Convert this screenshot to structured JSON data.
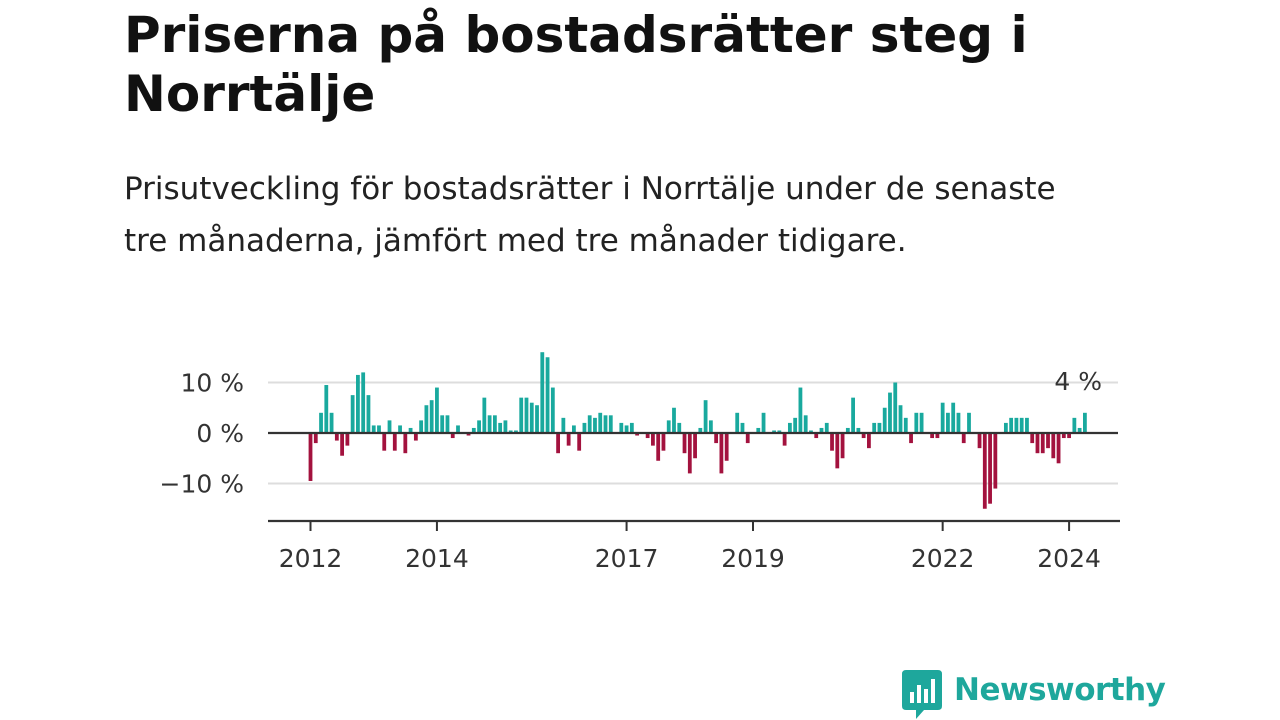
{
  "title": "Priserna på bostadsrätter steg i Norrtälje",
  "subtitle": "Prisutveckling för bostadsrätter i Norrtälje under de senaste tre månaderna, jämfört med tre månader tidigare.",
  "logo": {
    "name": "Newsworthy",
    "icon": "newsworthy-chart-bubble-icon",
    "color": "#1ea79c"
  },
  "colors": {
    "positive": "#19a99e",
    "negative": "#a3123e",
    "grid": "#dddddd",
    "zero_line": "#333333",
    "axis": "#333333"
  },
  "chart_data": {
    "type": "bar",
    "title": "",
    "xlabel": "",
    "ylabel": "",
    "ylim": [
      -17,
      17
    ],
    "y_ticks": [
      {
        "value": 10,
        "label": "10 %"
      },
      {
        "value": 0,
        "label": "0 %"
      },
      {
        "value": -10,
        "label": "−10 %"
      }
    ],
    "x_ticks": [
      {
        "date": "2012-01",
        "label": "2012"
      },
      {
        "date": "2014-01",
        "label": "2014"
      },
      {
        "date": "2017-01",
        "label": "2017"
      },
      {
        "date": "2019-01",
        "label": "2019"
      },
      {
        "date": "2022-01",
        "label": "2022"
      },
      {
        "date": "2024-01",
        "label": "2024"
      }
    ],
    "last_value_label": "4 %",
    "series": [
      {
        "points": [
          {
            "month": "2012-01",
            "value": -9.5
          },
          {
            "month": "2012-02",
            "value": -2
          },
          {
            "month": "2012-03",
            "value": 4
          },
          {
            "month": "2012-04",
            "value": 9.5
          },
          {
            "month": "2012-05",
            "value": 4
          },
          {
            "month": "2012-06",
            "value": -1.5
          },
          {
            "month": "2012-07",
            "value": -4.5
          },
          {
            "month": "2012-08",
            "value": -2.5
          },
          {
            "month": "2012-09",
            "value": 7.5
          },
          {
            "month": "2012-10",
            "value": 11.5
          },
          {
            "month": "2012-11",
            "value": 12
          },
          {
            "month": "2012-12",
            "value": 7.5
          },
          {
            "month": "2013-01",
            "value": 1.5
          },
          {
            "month": "2013-02",
            "value": 1.5
          },
          {
            "month": "2013-03",
            "value": -3.5
          },
          {
            "month": "2013-04",
            "value": 2.5
          },
          {
            "month": "2013-05",
            "value": -3.5
          },
          {
            "month": "2013-06",
            "value": 1.5
          },
          {
            "month": "2013-07",
            "value": -4
          },
          {
            "month": "2013-08",
            "value": 1
          },
          {
            "month": "2013-09",
            "value": -1.5
          },
          {
            "month": "2013-10",
            "value": 2.5
          },
          {
            "month": "2013-11",
            "value": 5.5
          },
          {
            "month": "2013-12",
            "value": 6.5
          },
          {
            "month": "2014-01",
            "value": 9
          },
          {
            "month": "2014-02",
            "value": 3.5
          },
          {
            "month": "2014-03",
            "value": 3.5
          },
          {
            "month": "2014-04",
            "value": -1
          },
          {
            "month": "2014-05",
            "value": 1.5
          },
          {
            "month": "2014-06",
            "value": 0
          },
          {
            "month": "2014-07",
            "value": -0.5
          },
          {
            "month": "2014-08",
            "value": 1
          },
          {
            "month": "2014-09",
            "value": 2.5
          },
          {
            "month": "2014-10",
            "value": 7
          },
          {
            "month": "2014-11",
            "value": 3.5
          },
          {
            "month": "2014-12",
            "value": 3.5
          },
          {
            "month": "2015-01",
            "value": 2
          },
          {
            "month": "2015-02",
            "value": 2.5
          },
          {
            "month": "2015-03",
            "value": 0.5
          },
          {
            "month": "2015-04",
            "value": 0.5
          },
          {
            "month": "2015-05",
            "value": 7
          },
          {
            "month": "2015-06",
            "value": 7
          },
          {
            "month": "2015-07",
            "value": 6
          },
          {
            "month": "2015-08",
            "value": 5.5
          },
          {
            "month": "2015-09",
            "value": 16
          },
          {
            "month": "2015-10",
            "value": 15
          },
          {
            "month": "2015-11",
            "value": 9
          },
          {
            "month": "2015-12",
            "value": -4
          },
          {
            "month": "2016-01",
            "value": 3
          },
          {
            "month": "2016-02",
            "value": -2.5
          },
          {
            "month": "2016-03",
            "value": 1.5
          },
          {
            "month": "2016-04",
            "value": -3.5
          },
          {
            "month": "2016-05",
            "value": 2
          },
          {
            "month": "2016-06",
            "value": 3.5
          },
          {
            "month": "2016-07",
            "value": 3
          },
          {
            "month": "2016-08",
            "value": 4
          },
          {
            "month": "2016-09",
            "value": 3.5
          },
          {
            "month": "2016-10",
            "value": 3.5
          },
          {
            "month": "2016-11",
            "value": 0
          },
          {
            "month": "2016-12",
            "value": 2
          },
          {
            "month": "2017-01",
            "value": 1.5
          },
          {
            "month": "2017-02",
            "value": 2
          },
          {
            "month": "2017-03",
            "value": -0.5
          },
          {
            "month": "2017-04",
            "value": 0
          },
          {
            "month": "2017-05",
            "value": -1
          },
          {
            "month": "2017-06",
            "value": -2.5
          },
          {
            "month": "2017-07",
            "value": -5.5
          },
          {
            "month": "2017-08",
            "value": -3.5
          },
          {
            "month": "2017-09",
            "value": 2.5
          },
          {
            "month": "2017-10",
            "value": 5
          },
          {
            "month": "2017-11",
            "value": 2
          },
          {
            "month": "2017-12",
            "value": -4
          },
          {
            "month": "2018-01",
            "value": -8
          },
          {
            "month": "2018-02",
            "value": -5
          },
          {
            "month": "2018-03",
            "value": 1
          },
          {
            "month": "2018-04",
            "value": 6.5
          },
          {
            "month": "2018-05",
            "value": 2.5
          },
          {
            "month": "2018-06",
            "value": -2
          },
          {
            "month": "2018-07",
            "value": -8
          },
          {
            "month": "2018-08",
            "value": -5.5
          },
          {
            "month": "2018-09",
            "value": 0
          },
          {
            "month": "2018-10",
            "value": 4
          },
          {
            "month": "2018-11",
            "value": 2
          },
          {
            "month": "2018-12",
            "value": -2
          },
          {
            "month": "2019-01",
            "value": 0
          },
          {
            "month": "2019-02",
            "value": 1
          },
          {
            "month": "2019-03",
            "value": 4
          },
          {
            "month": "2019-04",
            "value": 0
          },
          {
            "month": "2019-05",
            "value": 0.5
          },
          {
            "month": "2019-06",
            "value": 0.5
          },
          {
            "month": "2019-07",
            "value": -2.5
          },
          {
            "month": "2019-08",
            "value": 2
          },
          {
            "month": "2019-09",
            "value": 3
          },
          {
            "month": "2019-10",
            "value": 9
          },
          {
            "month": "2019-11",
            "value": 3.5
          },
          {
            "month": "2019-12",
            "value": 0.5
          },
          {
            "month": "2020-01",
            "value": -1
          },
          {
            "month": "2020-02",
            "value": 1
          },
          {
            "month": "2020-03",
            "value": 2
          },
          {
            "month": "2020-04",
            "value": -3.5
          },
          {
            "month": "2020-05",
            "value": -7
          },
          {
            "month": "2020-06",
            "value": -5
          },
          {
            "month": "2020-07",
            "value": 1
          },
          {
            "month": "2020-08",
            "value": 7
          },
          {
            "month": "2020-09",
            "value": 1
          },
          {
            "month": "2020-10",
            "value": -1
          },
          {
            "month": "2020-11",
            "value": -3
          },
          {
            "month": "2020-12",
            "value": 2
          },
          {
            "month": "2021-01",
            "value": 2
          },
          {
            "month": "2021-02",
            "value": 5
          },
          {
            "month": "2021-03",
            "value": 8
          },
          {
            "month": "2021-04",
            "value": 10
          },
          {
            "month": "2021-05",
            "value": 5.5
          },
          {
            "month": "2021-06",
            "value": 3
          },
          {
            "month": "2021-07",
            "value": -2
          },
          {
            "month": "2021-08",
            "value": 4
          },
          {
            "month": "2021-09",
            "value": 4
          },
          {
            "month": "2021-10",
            "value": 0
          },
          {
            "month": "2021-11",
            "value": -1
          },
          {
            "month": "2021-12",
            "value": -1
          },
          {
            "month": "2022-01",
            "value": 6
          },
          {
            "month": "2022-02",
            "value": 4
          },
          {
            "month": "2022-03",
            "value": 6
          },
          {
            "month": "2022-04",
            "value": 4
          },
          {
            "month": "2022-05",
            "value": -2
          },
          {
            "month": "2022-06",
            "value": 4
          },
          {
            "month": "2022-07",
            "value": 0
          },
          {
            "month": "2022-08",
            "value": -3
          },
          {
            "month": "2022-09",
            "value": -15
          },
          {
            "month": "2022-10",
            "value": -14
          },
          {
            "month": "2022-11",
            "value": -11
          },
          {
            "month": "2022-12",
            "value": 0
          },
          {
            "month": "2023-01",
            "value": 2
          },
          {
            "month": "2023-02",
            "value": 3
          },
          {
            "month": "2023-03",
            "value": 3
          },
          {
            "month": "2023-04",
            "value": 3
          },
          {
            "month": "2023-05",
            "value": 3
          },
          {
            "month": "2023-06",
            "value": -2
          },
          {
            "month": "2023-07",
            "value": -4
          },
          {
            "month": "2023-08",
            "value": -4
          },
          {
            "month": "2023-09",
            "value": -3
          },
          {
            "month": "2023-10",
            "value": -5
          },
          {
            "month": "2023-11",
            "value": -6
          },
          {
            "month": "2023-12",
            "value": -1
          },
          {
            "month": "2024-01",
            "value": -1
          },
          {
            "month": "2024-02",
            "value": 3
          },
          {
            "month": "2024-03",
            "value": 1
          },
          {
            "month": "2024-04",
            "value": 4
          }
        ]
      }
    ]
  }
}
